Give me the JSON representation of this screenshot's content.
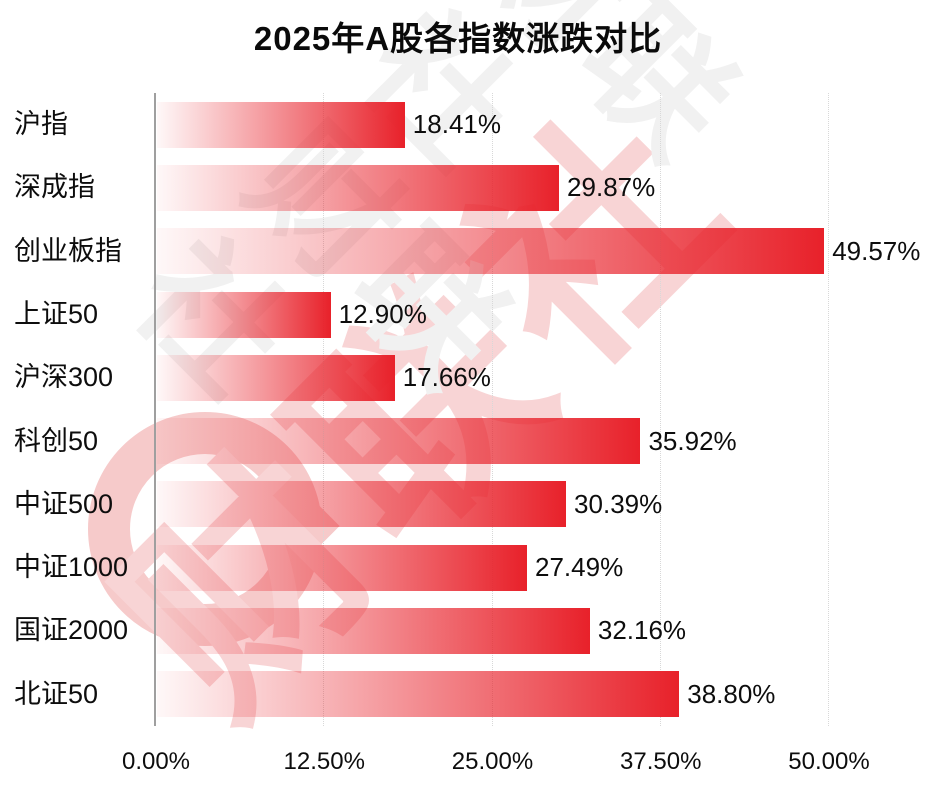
{
  "title": "2025年A股各指数涨跌对比",
  "watermark": {
    "brand_text": "财联社",
    "tile_text": "财联社\n财联社",
    "pink_color": "#f8d4d5",
    "gray_color": "#f1f1f1"
  },
  "chart_data": {
    "type": "bar",
    "orientation": "horizontal",
    "title": "2025年A股各指数涨跌对比",
    "categories": [
      "沪指",
      "深成指",
      "创业板指",
      "上证50",
      "沪深300",
      "科创50",
      "中证500",
      "中证1000",
      "国证2000",
      "北证50"
    ],
    "values": [
      18.41,
      29.87,
      49.57,
      12.9,
      17.66,
      35.92,
      30.39,
      27.49,
      32.16,
      38.8
    ],
    "value_labels": [
      "18.41%",
      "29.87%",
      "49.57%",
      "12.90%",
      "17.66%",
      "35.92%",
      "30.39%",
      "27.49%",
      "32.16%",
      "38.80%"
    ],
    "xlabel": "",
    "ylabel": "",
    "xlim": [
      0,
      50
    ],
    "x_ticks": [
      "0.00%",
      "12.50%",
      "25.00%",
      "37.50%",
      "50.00%"
    ],
    "x_tick_values": [
      0,
      12.5,
      25,
      37.5,
      50
    ],
    "grid": "vertical-dotted",
    "legend": "none",
    "bar_color_end": "#e8212a",
    "bar_color_start_alpha": 0.03,
    "axis_color": "#9f9f9f",
    "label_color": "#0d0d0d"
  }
}
